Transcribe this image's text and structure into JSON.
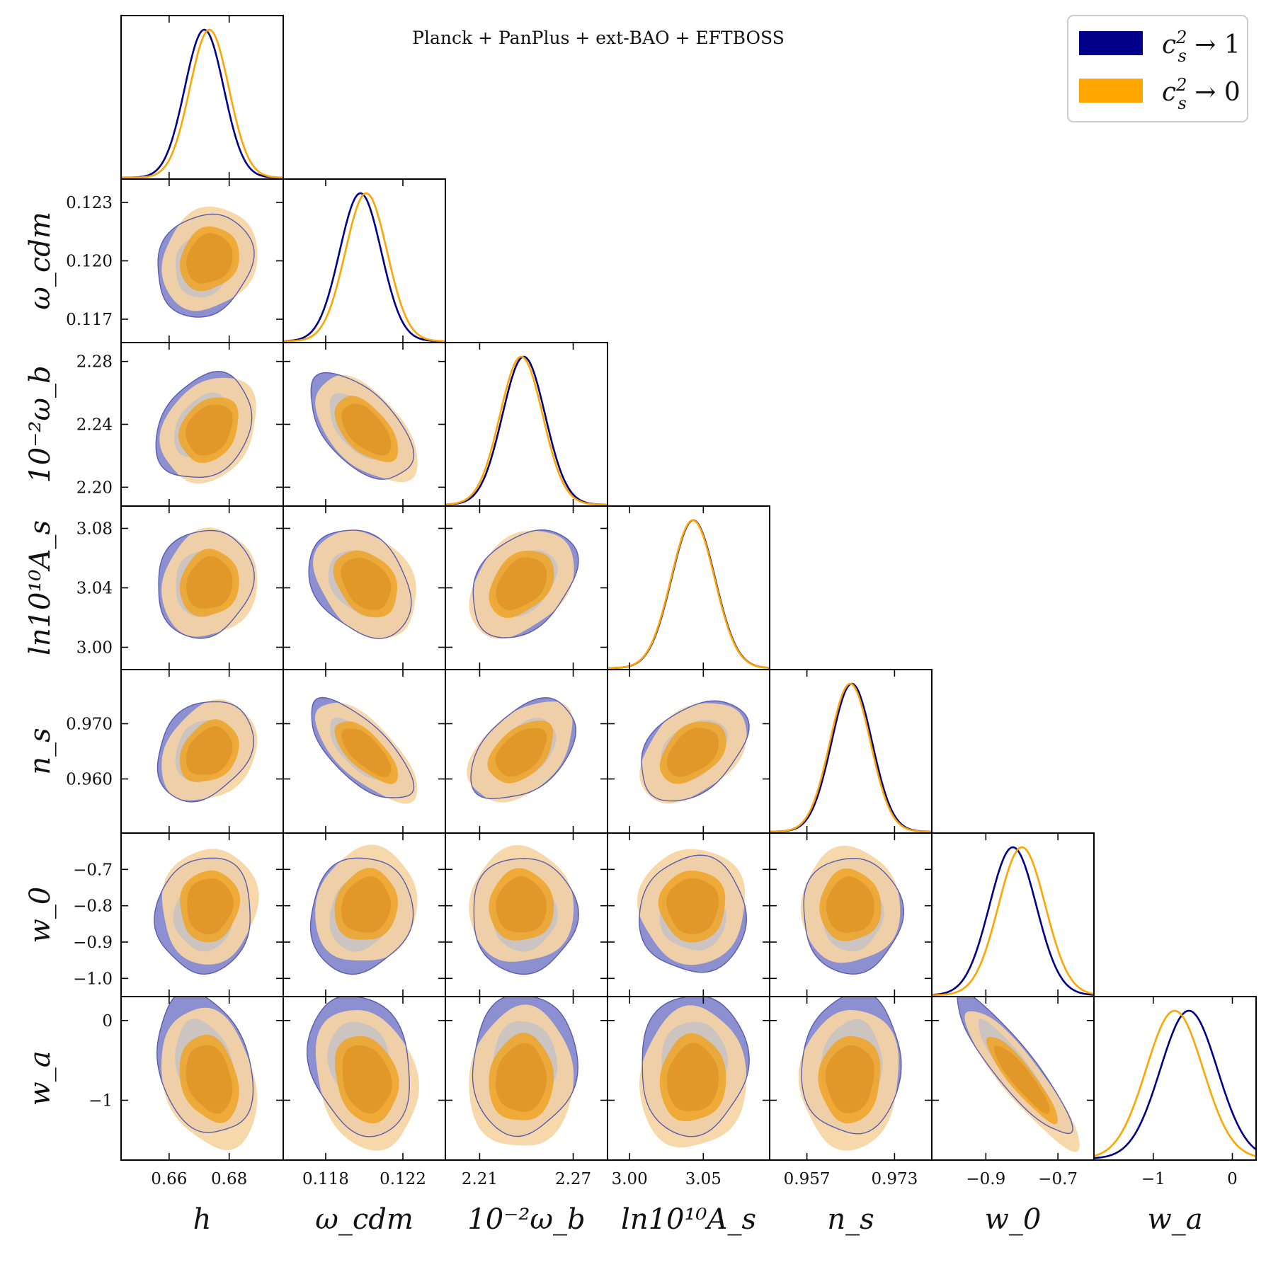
{
  "chart_data": {
    "type": "corner",
    "title": "Planck + PanPlus + ext-BAO + EFTBOSS",
    "params": [
      {
        "id": "h",
        "label": "h",
        "range": [
          0.644,
          0.698
        ],
        "ticks": [
          0.66,
          0.68
        ],
        "tick_labels": [
          "0.66",
          "0.68"
        ]
      },
      {
        "id": "omega_cdm",
        "label": "ω_cdm",
        "range": [
          0.1158,
          0.1242
        ],
        "ticks": [
          0.118,
          0.122
        ],
        "tick_labels": [
          "0.118",
          "0.122"
        ],
        "yticks": [
          0.117,
          0.12,
          0.123
        ],
        "ytick_labels": [
          "0.117",
          "0.120",
          "0.123"
        ]
      },
      {
        "id": "omega_b",
        "label": "10⁻²ω_b",
        "range": [
          2.188,
          2.292
        ],
        "ticks": [
          2.21,
          2.27
        ],
        "tick_labels": [
          "2.21",
          "2.27"
        ],
        "yticks": [
          2.2,
          2.24,
          2.28
        ],
        "ytick_labels": [
          "2.20",
          "2.24",
          "2.28"
        ]
      },
      {
        "id": "lnAs",
        "label": "ln10¹⁰A_s",
        "range": [
          2.985,
          3.095
        ],
        "ticks": [
          3.0,
          3.05
        ],
        "tick_labels": [
          "3.00",
          "3.05"
        ],
        "yticks": [
          3.0,
          3.04,
          3.08
        ],
        "ytick_labels": [
          "3.00",
          "3.04",
          "3.08"
        ]
      },
      {
        "id": "ns",
        "label": "n_s",
        "range": [
          0.9502,
          0.9798
        ],
        "ticks": [
          0.957,
          0.973
        ],
        "tick_labels": [
          "0.957",
          "0.973"
        ],
        "yticks": [
          0.96,
          0.97
        ],
        "ytick_labels": [
          "0.960",
          "0.970"
        ]
      },
      {
        "id": "w0",
        "label": "w_0",
        "range": [
          -1.05,
          -0.6
        ],
        "ticks": [
          -0.9,
          -0.7
        ],
        "tick_labels": [
          "−0.9",
          "−0.7"
        ],
        "yticks": [
          -1.0,
          -0.9,
          -0.8,
          -0.7
        ],
        "ytick_labels": [
          "−1.0",
          "−0.9",
          "−0.8",
          "−0.7"
        ]
      },
      {
        "id": "wa",
        "label": "w_a",
        "range": [
          -1.75,
          0.3
        ],
        "ticks": [
          -1,
          0
        ],
        "tick_labels": [
          "−1",
          "0"
        ],
        "yticks": [
          -1,
          0
        ],
        "ytick_labels": [
          "−1",
          "0"
        ]
      }
    ],
    "series": [
      {
        "name": "c_s² → 1",
        "label": "c",
        "label_sup": "2",
        "label_sub": "s",
        "label_rest": " → 1",
        "color": "#00008b",
        "fill_outer": "#8c8fd0",
        "fill_inner": "#c8c2c4",
        "mean": [
          0.6717,
          0.1198,
          2.2383,
          3.0432,
          0.9652,
          -0.825,
          -0.55
        ],
        "sigma": [
          0.0065,
          0.00108,
          0.0137,
          0.0148,
          0.0037,
          0.065,
          0.36
        ]
      },
      {
        "name": "c_s² → 0",
        "label": "c",
        "label_sup": "2",
        "label_sub": "s",
        "label_rest": " → 0",
        "color": "#ffa500",
        "fill_outer": "#f6d5a3",
        "fill_inner": "#f0a323",
        "fill_core": "#db8d1d",
        "mean": [
          0.6734,
          0.1201,
          2.2367,
          3.0429,
          0.9649,
          -0.8,
          -0.73
        ],
        "sigma": [
          0.0065,
          0.00108,
          0.0137,
          0.0148,
          0.0037,
          0.065,
          0.36
        ]
      }
    ],
    "correlations": [
      [
        0,
        1,
        0.15
      ],
      [
        0,
        2,
        0.25
      ],
      [
        0,
        3,
        0.1
      ],
      [
        0,
        4,
        0.25
      ],
      [
        0,
        5,
        0.05
      ],
      [
        0,
        6,
        -0.25
      ],
      [
        1,
        2,
        -0.55
      ],
      [
        1,
        3,
        -0.3
      ],
      [
        1,
        4,
        -0.7
      ],
      [
        1,
        5,
        0.1
      ],
      [
        1,
        6,
        -0.2
      ],
      [
        2,
        3,
        0.35
      ],
      [
        2,
        4,
        0.45
      ],
      [
        2,
        5,
        0.0
      ],
      [
        2,
        6,
        0.05
      ],
      [
        3,
        4,
        0.4
      ],
      [
        3,
        5,
        0.0
      ],
      [
        3,
        6,
        0.05
      ],
      [
        4,
        5,
        0.0
      ],
      [
        4,
        6,
        0.05
      ],
      [
        5,
        6,
        -0.9
      ]
    ],
    "legend_position": "top-right"
  }
}
